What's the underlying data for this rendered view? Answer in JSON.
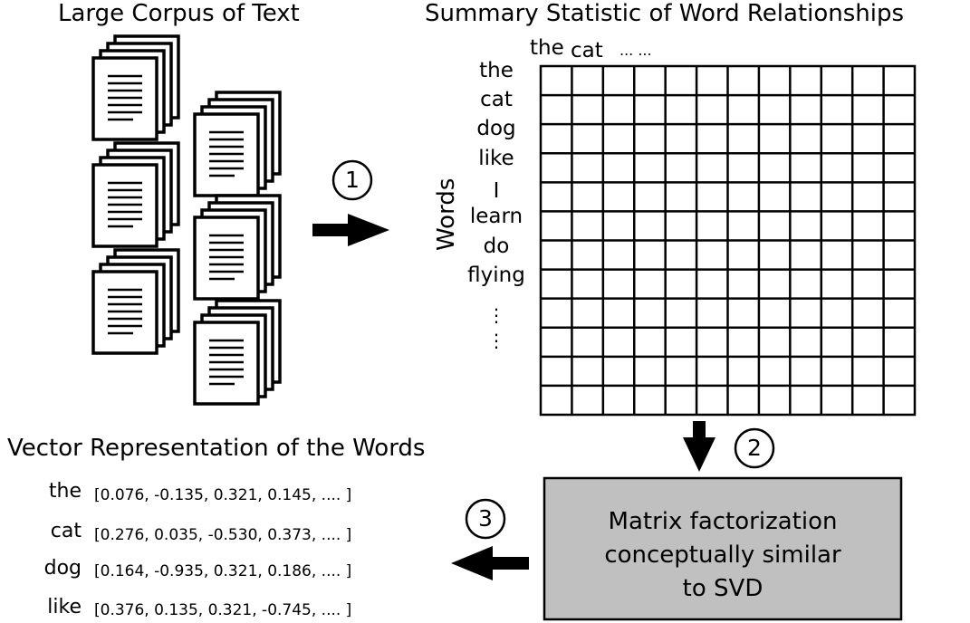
{
  "titles": {
    "corpus": "Large Corpus of Text",
    "summary": "Summary Statistic of Word Relationships",
    "vectors": "Vector Representation of the Words"
  },
  "matrix": {
    "column_labels": [
      "the",
      "cat",
      "... ..."
    ],
    "row_axis_label": "Words",
    "row_labels": [
      "the",
      "cat",
      "dog",
      "like",
      "I",
      "learn",
      "do",
      "flying",
      "⋮",
      "⋮"
    ]
  },
  "steps": {
    "one": "1",
    "two": "2",
    "three": "3"
  },
  "factorization_box": {
    "line1": "Matrix factorization",
    "line2": "conceptually similar",
    "line3": "to SVD",
    "fill": "#c0c0c0"
  },
  "vectors": [
    {
      "word": "the",
      "value": "[0.076, -0.135, 0.321, 0.145, .... ]"
    },
    {
      "word": "cat",
      "value": "[0.276, 0.035, -0.530, 0.373, .... ]"
    },
    {
      "word": "dog",
      "value": "[0.164, -0.935, 0.321, 0.186, .... ]"
    },
    {
      "word": "like",
      "value": "[0.376, 0.135, 0.321, -0.745, .... ]"
    }
  ]
}
